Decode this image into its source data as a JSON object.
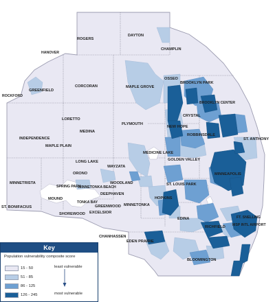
{
  "map": {
    "places": [
      {
        "id": "rogers",
        "label": "ROGERS"
      },
      {
        "id": "dayton",
        "label": "DAYTON"
      },
      {
        "id": "champlin",
        "label": "CHAMPLIN"
      },
      {
        "id": "hanover",
        "label": "HANOVER"
      },
      {
        "id": "greenfield",
        "label": "GREENFIELD"
      },
      {
        "id": "rockford",
        "label": "ROCKFORD"
      },
      {
        "id": "corcoran",
        "label": "CORCORAN"
      },
      {
        "id": "maple-grove",
        "label": "MAPLE GROVE"
      },
      {
        "id": "osseo",
        "label": "OSSEO"
      },
      {
        "id": "brooklyn-park",
        "label": "BROOKLYN PARK"
      },
      {
        "id": "brooklyn-center",
        "label": "BROOKLYN CENTER"
      },
      {
        "id": "loretto",
        "label": "LORETTO"
      },
      {
        "id": "medina",
        "label": "MEDINA"
      },
      {
        "id": "plymouth",
        "label": "PLYMOUTH"
      },
      {
        "id": "crystal",
        "label": "CRYSTAL"
      },
      {
        "id": "new-hope",
        "label": "NEW HOPE"
      },
      {
        "id": "robbinsdale",
        "label": "ROBBINSDALE"
      },
      {
        "id": "st-anthony",
        "label": "ST. ANTHONY"
      },
      {
        "id": "independence",
        "label": "INDEPENDENCE"
      },
      {
        "id": "maple-plain",
        "label": "MAPLE PLAIN"
      },
      {
        "id": "medicine-lake",
        "label": "MEDICINE LAKE"
      },
      {
        "id": "golden-valley",
        "label": "GOLDEN VALLEY"
      },
      {
        "id": "long-lake",
        "label": "LONG LAKE"
      },
      {
        "id": "wayzata",
        "label": "WAYZATA"
      },
      {
        "id": "orono",
        "label": "ORONO"
      },
      {
        "id": "minneapolis",
        "label": "MINNEAPOLIS"
      },
      {
        "id": "minnetrista",
        "label": "MINNETRISTA"
      },
      {
        "id": "spring-park",
        "label": "SPRING PARK"
      },
      {
        "id": "minnetonka-beach",
        "label": "MINNETONKA BEACH"
      },
      {
        "id": "woodland",
        "label": "WOODLAND"
      },
      {
        "id": "st-louis-park",
        "label": "ST. LOUIS PARK"
      },
      {
        "id": "mound",
        "label": "MOUND"
      },
      {
        "id": "deephaven",
        "label": "DEEPHAVEN"
      },
      {
        "id": "hopkins",
        "label": "HOPKINS"
      },
      {
        "id": "tonka-bay",
        "label": "TONKA BAY"
      },
      {
        "id": "greenwood",
        "label": "GREENWOOD"
      },
      {
        "id": "minnetonka",
        "label": "MINNETONKA"
      },
      {
        "id": "st-bonifacius",
        "label": "ST. BONIFACIUS"
      },
      {
        "id": "shorewood",
        "label": "SHOREWOOD"
      },
      {
        "id": "excelsior",
        "label": "EXCELSIOR"
      },
      {
        "id": "edina",
        "label": "EDINA"
      },
      {
        "id": "richfield",
        "label": "RICHFIELD"
      },
      {
        "id": "fort-snelling",
        "label": "FT. SNELLING"
      },
      {
        "id": "msp-airport",
        "label": "MSP INTL AIRPORT"
      },
      {
        "id": "chanhassen",
        "label": "CHANHASSEN"
      },
      {
        "id": "eden-prairie",
        "label": "EDEN PRAIRIE"
      },
      {
        "id": "bloomington",
        "label": "BLOOMINGTON"
      }
    ]
  },
  "key": {
    "title": "Key",
    "subtitle": "Population vulnerability composite score",
    "classes": [
      {
        "range": "15 - 50",
        "color": "#e9e8f3"
      },
      {
        "range": "51 - 85",
        "color": "#b7cde6"
      },
      {
        "range": "86 - 125",
        "color": "#6ea0d2"
      },
      {
        "range": "126 - 245",
        "color": "#1a5f98"
      }
    ],
    "least_label": "least vulnerable",
    "most_label": "most vulnerable"
  },
  "colors": {
    "base_fill": "#e9e8f3",
    "outline": "#9b9bb0",
    "key_header": "#1f4e84"
  }
}
